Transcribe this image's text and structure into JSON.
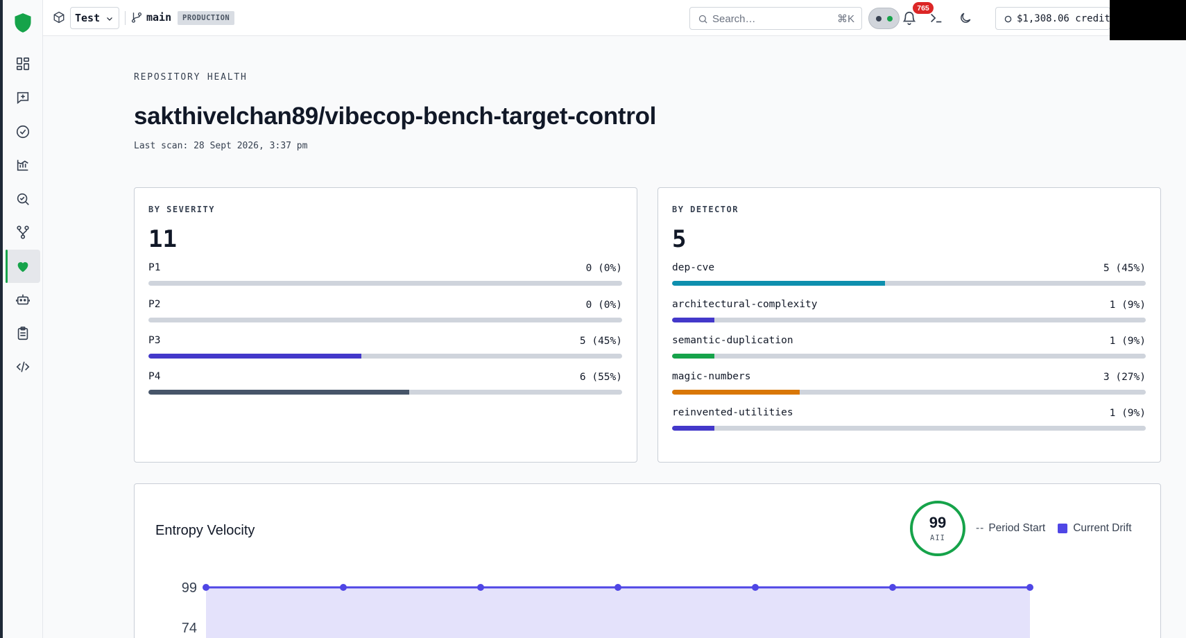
{
  "sidebar": {
    "logo_icon": "shield-icon",
    "items": [
      {
        "id": "dashboard",
        "icon": "dashboard-grid-icon",
        "active": false
      },
      {
        "id": "new-review",
        "icon": "message-plus-icon",
        "active": false
      },
      {
        "id": "checks",
        "icon": "check-circle-icon",
        "active": false
      },
      {
        "id": "analytics",
        "icon": "chart-icon",
        "active": false
      },
      {
        "id": "inspect",
        "icon": "search-check-icon",
        "active": false
      },
      {
        "id": "integrations",
        "icon": "git-fork-icon",
        "active": false
      },
      {
        "id": "health",
        "icon": "heart-icon",
        "active": true
      },
      {
        "id": "agents",
        "icon": "robot-icon",
        "active": false
      },
      {
        "id": "reports",
        "icon": "clipboard-icon",
        "active": false
      },
      {
        "id": "code",
        "icon": "code-icon",
        "active": false
      }
    ]
  },
  "topbar": {
    "project_label": "Test",
    "branch_name": "main",
    "env_badge": "PRODUCTION",
    "search_placeholder": "Search…",
    "search_shortcut": "⌘K",
    "notification_count": "765",
    "credits": "$1,308.06 credits"
  },
  "page": {
    "eyebrow": "REPOSITORY HEALTH",
    "title": "sakthivelchan89/vibecop-bench-target-control",
    "last_scan": "Last scan: 28 Sept 2026, 3:37 pm"
  },
  "severity": {
    "label": "BY SEVERITY",
    "total": "11",
    "rows": [
      {
        "name": "P1",
        "value": "0 (0%)",
        "fraction": 0.0,
        "color": "#4f46e5"
      },
      {
        "name": "P2",
        "value": "0 (0%)",
        "fraction": 0.0,
        "color": "#4f46e5"
      },
      {
        "name": "P3",
        "value": "5 (45%)",
        "fraction": 0.45,
        "color": "#4338ca"
      },
      {
        "name": "P4",
        "value": "6 (55%)",
        "fraction": 0.55,
        "color": "#475569"
      }
    ]
  },
  "detector": {
    "label": "BY DETECTOR",
    "total": "5",
    "rows": [
      {
        "name": "dep-cve",
        "value": "5 (45%)",
        "fraction": 0.45,
        "color": "#0e8fae"
      },
      {
        "name": "architectural-complexity",
        "value": "1 (9%)",
        "fraction": 0.09,
        "color": "#4338ca"
      },
      {
        "name": "semantic-duplication",
        "value": "1 (9%)",
        "fraction": 0.09,
        "color": "#16a34a"
      },
      {
        "name": "magic-numbers",
        "value": "3 (27%)",
        "fraction": 0.27,
        "color": "#d97706"
      },
      {
        "name": "reinvented-utilities",
        "value": "1 (9%)",
        "fraction": 0.09,
        "color": "#4338ca"
      }
    ]
  },
  "entropy": {
    "title": "Entropy Velocity",
    "score": "99",
    "score_label": "AII",
    "legend_period_start": "Period Start",
    "legend_current_drift": "Current Drift",
    "accent_color": "#4f46e5",
    "ring_color": "#16a34a"
  },
  "chart_data": {
    "type": "area",
    "x": [
      1,
      2,
      3,
      4,
      5,
      6,
      7
    ],
    "series": [
      {
        "name": "Current Drift",
        "values": [
          99,
          99,
          99,
          99,
          99,
          99,
          99
        ]
      }
    ],
    "y_ticks": [
      "99",
      "74"
    ],
    "ylim": [
      74,
      99
    ]
  }
}
